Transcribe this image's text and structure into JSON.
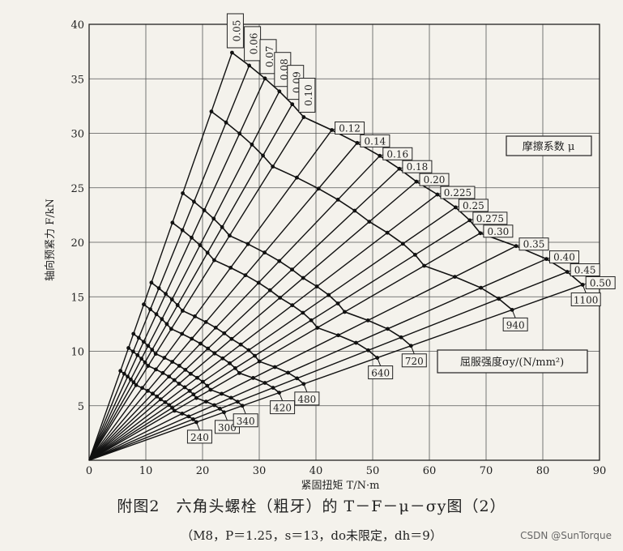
{
  "chart_data": {
    "type": "line",
    "xlabel": "紧固扭矩 T/N·m",
    "ylabel": "轴向预紧力 F/kN",
    "xlim": [
      0,
      90
    ],
    "ylim": [
      0,
      40
    ],
    "xticks": [
      0,
      10,
      20,
      30,
      40,
      50,
      60,
      70,
      80,
      90
    ],
    "yticks": [
      5,
      10,
      15,
      20,
      25,
      30,
      35,
      40
    ],
    "grid": true,
    "mu_legend": "摩擦系数 μ",
    "sigma_legend": "屈服强度σy/(N/mm²)",
    "friction_series": [
      {
        "name": "0.05",
        "slope": 1.484
      },
      {
        "name": "0.06",
        "slope": 1.283
      },
      {
        "name": "0.07",
        "slope": 1.13
      },
      {
        "name": "0.08",
        "slope": 1.009
      },
      {
        "name": "0.09",
        "slope": 0.912
      },
      {
        "name": "0.10",
        "slope": 0.832
      },
      {
        "name": "0.12",
        "slope": 0.708
      },
      {
        "name": "0.14",
        "slope": 0.616
      },
      {
        "name": "0.16",
        "slope": 0.545
      },
      {
        "name": "0.18",
        "slope": 0.489
      },
      {
        "name": "0.20",
        "slope": 0.443
      },
      {
        "name": "0.225",
        "slope": 0.397
      },
      {
        "name": "0.25",
        "slope": 0.359
      },
      {
        "name": "0.275",
        "slope": 0.328
      },
      {
        "name": "0.30",
        "slope": 0.302
      },
      {
        "name": "0.35",
        "slope": 0.261
      },
      {
        "name": "0.40",
        "slope": 0.229
      },
      {
        "name": "0.45",
        "slope": 0.205
      },
      {
        "name": "0.50",
        "slope": 0.185
      }
    ],
    "yield_series": [
      {
        "name": "240",
        "f_max": 8.2,
        "f_min": 3.5
      },
      {
        "name": "300",
        "f_max": 10.3,
        "f_min": 4.4
      },
      {
        "name": "340",
        "f_max": 11.6,
        "f_min": 5.0
      },
      {
        "name": "420",
        "f_max": 14.3,
        "f_min": 6.2
      },
      {
        "name": "480",
        "f_max": 16.3,
        "f_min": 7.0
      },
      {
        "name": "640",
        "f_max": 21.8,
        "f_min": 9.4
      },
      {
        "name": "720",
        "f_max": 24.5,
        "f_min": 10.5
      },
      {
        "name": "940",
        "f_max": 32.0,
        "f_min": 13.8
      },
      {
        "name": "1100",
        "f_max": 37.4,
        "f_min": 16.1
      }
    ]
  },
  "caption": {
    "title": "附图2　六角头螺栓（粗牙）的 T－F－μ－σy图（2）",
    "subtitle": "（M8，P＝1.25，s＝13，do未限定，dh＝9）"
  },
  "watermark": "CSDN @SunTorque"
}
